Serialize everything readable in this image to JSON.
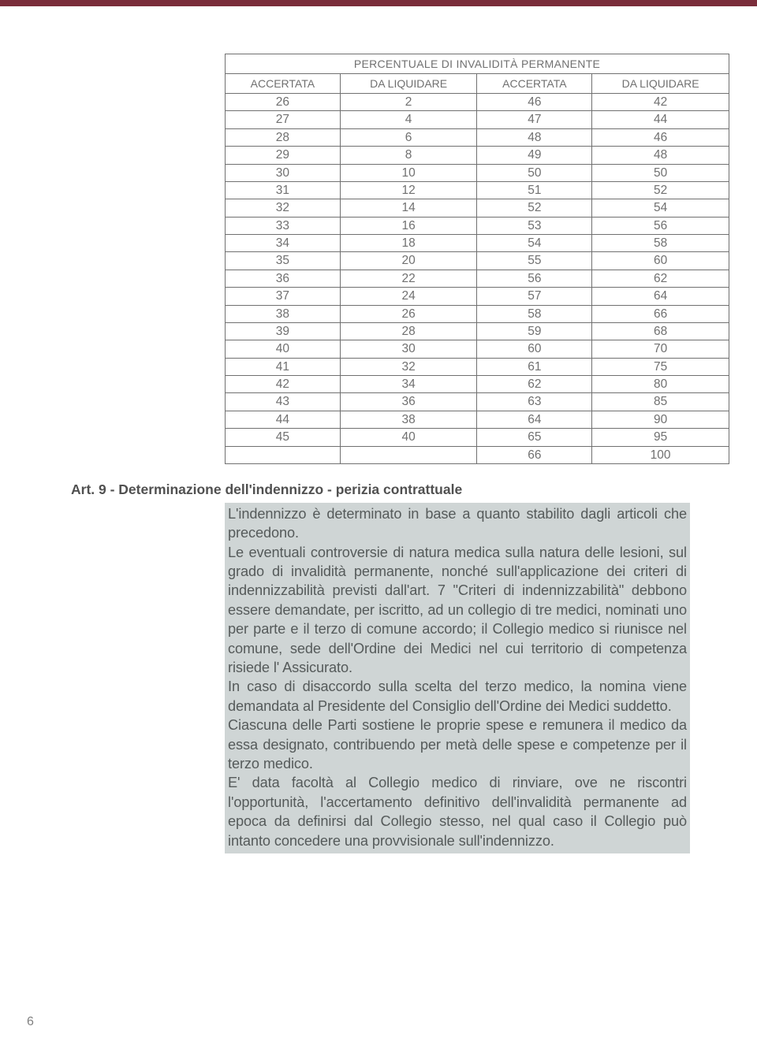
{
  "table": {
    "title": "PERCENTUALE DI INVALIDITÀ PERMANENTE",
    "headers": [
      "ACCERTATA",
      "DA LIQUIDARE",
      "ACCERTATA",
      "DA LIQUIDARE"
    ],
    "rows": [
      [
        "26",
        "2",
        "46",
        "42"
      ],
      [
        "27",
        "4",
        "47",
        "44"
      ],
      [
        "28",
        "6",
        "48",
        "46"
      ],
      [
        "29",
        "8",
        "49",
        "48"
      ],
      [
        "30",
        "10",
        "50",
        "50"
      ],
      [
        "31",
        "12",
        "51",
        "52"
      ],
      [
        "32",
        "14",
        "52",
        "54"
      ],
      [
        "33",
        "16",
        "53",
        "56"
      ],
      [
        "34",
        "18",
        "54",
        "58"
      ],
      [
        "35",
        "20",
        "55",
        "60"
      ],
      [
        "36",
        "22",
        "56",
        "62"
      ],
      [
        "37",
        "24",
        "57",
        "64"
      ],
      [
        "38",
        "26",
        "58",
        "66"
      ],
      [
        "39",
        "28",
        "59",
        "68"
      ],
      [
        "40",
        "30",
        "60",
        "70"
      ],
      [
        "41",
        "32",
        "61",
        "75"
      ],
      [
        "42",
        "34",
        "62",
        "80"
      ],
      [
        "43",
        "36",
        "63",
        "85"
      ],
      [
        "44",
        "38",
        "64",
        "90"
      ],
      [
        "45",
        "40",
        "65",
        "95"
      ],
      [
        "",
        "",
        "66",
        "100"
      ]
    ]
  },
  "article": {
    "title": "Art. 9 - Determinazione dell'indennizzo - perizia contrattuale",
    "paragraphs": [
      "L'indennizzo è determinato in base a quanto stabilito dagli articoli che precedono.",
      "Le eventuali controversie di natura medica sulla natura delle lesioni, sul grado di invalidità permanente, nonché sull'applicazione dei criteri di indennizzabilità previsti dall'art. 7 \"Criteri di indennizzabilità\" debbono essere demandate, per iscritto, ad un collegio di tre medici, nominati uno per parte e il terzo di comune accordo; il Collegio medico si riunisce nel comune, sede dell'Ordine dei Medici nel cui territorio di competenza risiede l' Assicurato.",
      "In caso di disaccordo sulla scelta del terzo medico, la nomina viene demandata al Presidente del Consiglio dell'Ordine dei Medici suddetto.",
      "Ciascuna delle Parti sostiene le proprie spese e remunera il medico da essa designato, contribuendo per metà delle spese e competenze per il terzo medico.",
      "E' data facoltà al Collegio medico di rinviare, ove ne riscontri l'opportunità, l'accertamento definitivo dell'invalidità permanente ad epoca da definirsi dal Collegio stesso, nel qual caso il Collegio può intanto concedere una provvisionale sull'indennizzo."
    ]
  },
  "page_number": "6"
}
